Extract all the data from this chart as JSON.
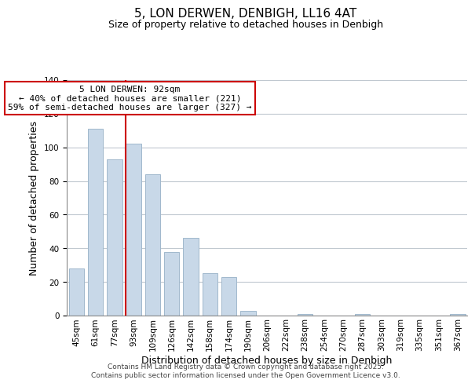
{
  "title": "5, LON DERWEN, DENBIGH, LL16 4AT",
  "subtitle": "Size of property relative to detached houses in Denbigh",
  "xlabel": "Distribution of detached houses by size in Denbigh",
  "ylabel": "Number of detached properties",
  "bar_labels": [
    "45sqm",
    "61sqm",
    "77sqm",
    "93sqm",
    "109sqm",
    "126sqm",
    "142sqm",
    "158sqm",
    "174sqm",
    "190sqm",
    "206sqm",
    "222sqm",
    "238sqm",
    "254sqm",
    "270sqm",
    "287sqm",
    "303sqm",
    "319sqm",
    "335sqm",
    "351sqm",
    "367sqm"
  ],
  "bar_values": [
    28,
    111,
    93,
    102,
    84,
    38,
    46,
    25,
    23,
    3,
    0,
    0,
    1,
    0,
    0,
    1,
    0,
    0,
    0,
    0,
    1
  ],
  "bar_color": "#c8d8e8",
  "bar_edgecolor": "#a0b8cc",
  "ylim": [
    0,
    140
  ],
  "yticks": [
    0,
    20,
    40,
    60,
    80,
    100,
    120,
    140
  ],
  "vline_x_index": 3,
  "vline_color": "#cc0000",
  "annotation_title": "5 LON DERWEN: 92sqm",
  "annotation_line1": "← 40% of detached houses are smaller (221)",
  "annotation_line2": "59% of semi-detached houses are larger (327) →",
  "annotation_box_facecolor": "#ffffff",
  "annotation_box_edgecolor": "#cc0000",
  "footer1": "Contains HM Land Registry data © Crown copyright and database right 2025.",
  "footer2": "Contains public sector information licensed under the Open Government Licence v3.0.",
  "background_color": "#ffffff",
  "grid_color": "#c0c8d0",
  "title_fontsize": 11,
  "subtitle_fontsize": 9,
  "tick_fontsize": 7.5,
  "axis_label_fontsize": 9,
  "annotation_fontsize": 8,
  "footer_fontsize": 6.5
}
